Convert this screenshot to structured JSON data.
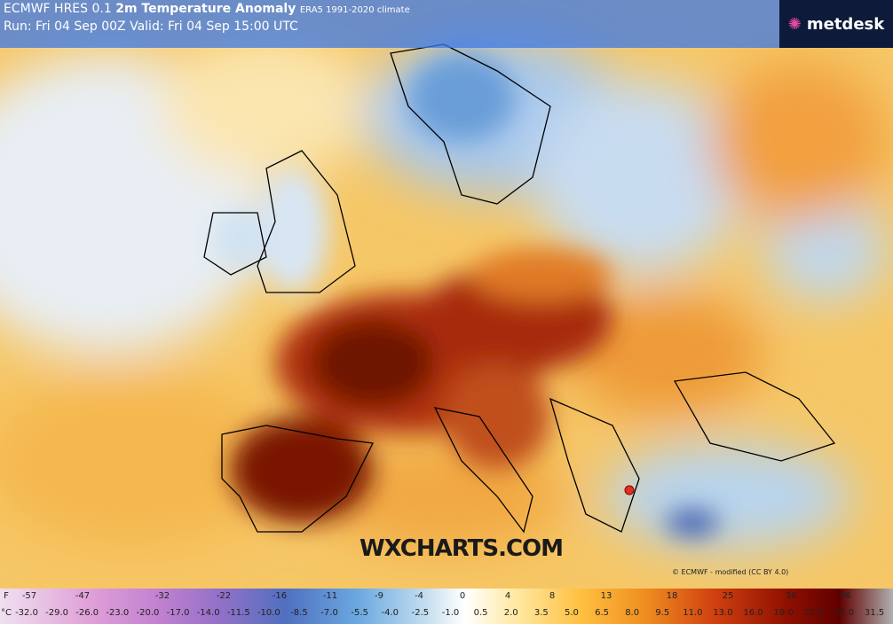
{
  "header": {
    "title_prefix": "ECMWF HRES 0.1",
    "title_main": "2m Temperature Anomaly",
    "title_note": "ERA5 1991-2020 climate",
    "run_line": "Run: Fri 04 Sep 00Z Valid: Fri 04 Sep 15:00 UTC"
  },
  "logo": "metdesk",
  "watermark": "WXCHARTS.COM",
  "credit": "© ECMWF - modified (CC BY 4.0)",
  "legend": {
    "f_unit": "F",
    "f_labels": [
      "-57",
      "-47",
      "-32",
      "-22",
      "-16",
      "-11",
      "-9",
      "-4",
      "0",
      "4",
      "8",
      "13",
      "18",
      "25",
      "36",
      "46"
    ],
    "c_unit": "°C",
    "c_labels": [
      "-32.0",
      "-29.0",
      "-26.0",
      "-23.0",
      "-20.0",
      "-17.0",
      "-14.0",
      "-11.5",
      "-10.0",
      "-8.5",
      "-7.0",
      "-5.5",
      "-4.0",
      "-2.5",
      "-1.0",
      "0.5",
      "2.0",
      "3.5",
      "5.0",
      "6.5",
      "8.0",
      "9.5",
      "11.0",
      "13.0",
      "16.0",
      "19.0",
      "22.0",
      "25.0",
      "31.5"
    ]
  }
}
